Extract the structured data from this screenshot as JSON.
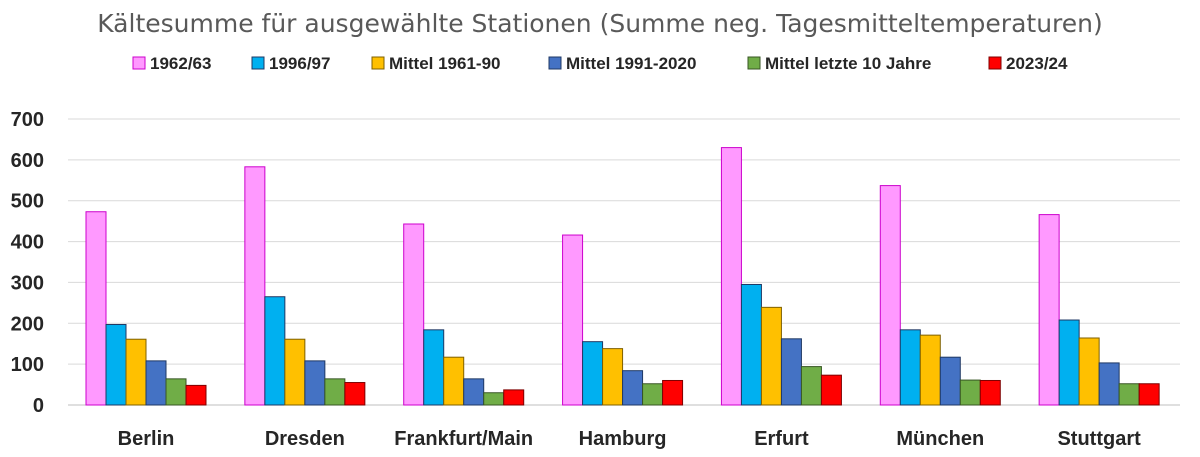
{
  "chart_data": {
    "type": "bar",
    "title": "Kältesumme für ausgewählte Stationen (Summe neg. Tagesmitteltemperaturen)",
    "xlabel": "",
    "ylabel": "",
    "ylim": [
      0,
      700
    ],
    "yticks": [
      0,
      100,
      200,
      300,
      400,
      500,
      600,
      700
    ],
    "grid": true,
    "legend_position": "top",
    "categories": [
      "Berlin",
      "Dresden",
      "Frankfurt/Main",
      "Hamburg",
      "Erfurt",
      "München",
      "Stuttgart"
    ],
    "series": [
      {
        "name": "1962/63",
        "color": "#ff99ff",
        "border": "#cc00cc",
        "values": [
          473,
          583,
          443,
          416,
          630,
          537,
          466
        ]
      },
      {
        "name": "1996/97",
        "color": "#00b0f0",
        "border": "#1f3864",
        "values": [
          197,
          265,
          184,
          155,
          295,
          184,
          208
        ]
      },
      {
        "name": "Mittel 1961-90",
        "color": "#ffc000",
        "border": "#7f6000",
        "values": [
          161,
          161,
          117,
          138,
          239,
          171,
          164
        ]
      },
      {
        "name": "Mittel 1991-2020",
        "color": "#4472c4",
        "border": "#1f3864",
        "values": [
          108,
          108,
          64,
          84,
          162,
          117,
          103
        ]
      },
      {
        "name": "Mittel  letzte 10 Jahre",
        "color": "#70ad47",
        "border": "#375623",
        "values": [
          64,
          64,
          30,
          52,
          94,
          61,
          52
        ]
      },
      {
        "name": "2023/24",
        "color": "#ff0000",
        "border": "#7f0000",
        "values": [
          48,
          55,
          37,
          60,
          73,
          60,
          52
        ]
      }
    ]
  }
}
